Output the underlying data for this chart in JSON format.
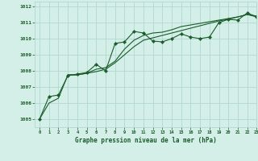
{
  "title": "Graphe pression niveau de la mer (hPa)",
  "bg_color": "#d4eee8",
  "grid_color": "#aad4cc",
  "line_color": "#1a5c2a",
  "marker_color": "#1a5c2a",
  "xlim": [
    -0.5,
    23
  ],
  "ylim": [
    1004.5,
    1012.3
  ],
  "yticks": [
    1005,
    1006,
    1007,
    1008,
    1009,
    1010,
    1011,
    1012
  ],
  "xticks": [
    0,
    1,
    2,
    3,
    4,
    5,
    6,
    7,
    8,
    9,
    10,
    11,
    12,
    13,
    14,
    15,
    16,
    17,
    18,
    19,
    20,
    21,
    22,
    23
  ],
  "series1": {
    "x": [
      0,
      1,
      2,
      3,
      4,
      5,
      6,
      7,
      8,
      9,
      10,
      11,
      12,
      13,
      14,
      15,
      16,
      17,
      18,
      19,
      20,
      21,
      22,
      23
    ],
    "y": [
      1005.0,
      1006.4,
      1006.5,
      1007.7,
      1007.8,
      1007.9,
      1008.4,
      1008.0,
      1009.7,
      1009.8,
      1010.45,
      1010.35,
      1009.85,
      1009.8,
      1010.0,
      1010.3,
      1010.1,
      1010.0,
      1010.1,
      1011.0,
      1011.2,
      1011.15,
      1011.6,
      1011.35
    ]
  },
  "series2": {
    "x": [
      0,
      1,
      2,
      3,
      4,
      5,
      6,
      7,
      8,
      9,
      10,
      11,
      12,
      13,
      14,
      15,
      16,
      17,
      18,
      19,
      20,
      21,
      22,
      23
    ],
    "y": [
      1005.0,
      1006.0,
      1006.3,
      1007.75,
      1007.75,
      1007.85,
      1007.95,
      1008.1,
      1008.5,
      1009.0,
      1009.5,
      1009.9,
      1010.05,
      1010.2,
      1010.35,
      1010.5,
      1010.65,
      1010.8,
      1010.95,
      1011.1,
      1011.2,
      1011.35,
      1011.5,
      1011.4
    ]
  },
  "series3": {
    "x": [
      3,
      4,
      5,
      6,
      7,
      8,
      9,
      10,
      11,
      12,
      13,
      14,
      15,
      16,
      17,
      18,
      19,
      20,
      21,
      22,
      23
    ],
    "y": [
      1007.75,
      1007.75,
      1007.85,
      1008.1,
      1008.2,
      1008.6,
      1009.35,
      1009.9,
      1010.2,
      1010.35,
      1010.4,
      1010.55,
      1010.75,
      1010.85,
      1010.95,
      1011.05,
      1011.15,
      1011.25,
      1011.35,
      1011.5,
      1011.35
    ]
  },
  "subplots_adjust": [
    0.135,
    0.21,
    0.995,
    0.99
  ]
}
